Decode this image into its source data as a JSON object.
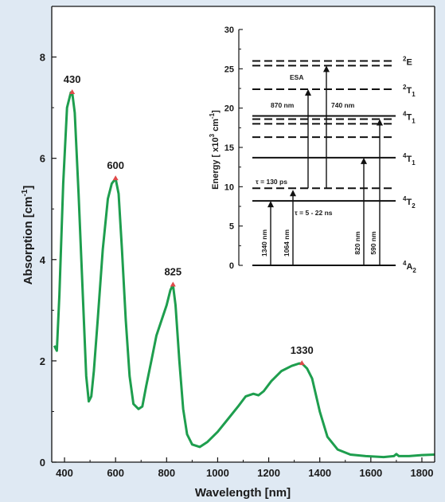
{
  "chart_data": [
    {
      "type": "line",
      "title": "",
      "xlabel": "Wavelength [nm]",
      "ylabel": "Absorption [cm",
      "ylabel_sup": "-1",
      "ylabel_close": "]",
      "xlim": [
        350,
        1850
      ],
      "ylim": [
        0,
        9
      ],
      "x_ticks": [
        400,
        600,
        800,
        1000,
        1200,
        1400,
        1600,
        1800
      ],
      "y_ticks": [
        0,
        2,
        4,
        6,
        8
      ],
      "grid": false,
      "line_color": "#1e9e4e",
      "marker_color": "#e04a4a",
      "series": [
        {
          "x": [
            360,
            370,
            380,
            395,
            410,
            425,
            430,
            440,
            455,
            470,
            485,
            495,
            505,
            515,
            530,
            550,
            570,
            585,
            600,
            612,
            625,
            640,
            655,
            670,
            690,
            705,
            720,
            740,
            760,
            780,
            800,
            815,
            825,
            835,
            850,
            865,
            880,
            900,
            930,
            960,
            1000,
            1040,
            1080,
            1110,
            1140,
            1160,
            1180,
            1210,
            1250,
            1290,
            1320,
            1330,
            1350,
            1370,
            1400,
            1430,
            1470,
            1520,
            1580,
            1650,
            1690,
            1700,
            1710,
            1750,
            1800,
            1850
          ],
          "y": [
            2.3,
            2.2,
            3.3,
            5.5,
            7.0,
            7.3,
            7.3,
            6.9,
            5.3,
            3.5,
            1.7,
            1.2,
            1.3,
            1.8,
            2.8,
            4.2,
            5.2,
            5.5,
            5.6,
            5.3,
            4.2,
            2.8,
            1.7,
            1.15,
            1.05,
            1.1,
            1.5,
            2.0,
            2.5,
            2.8,
            3.1,
            3.4,
            3.5,
            3.1,
            2.0,
            1.05,
            0.55,
            0.35,
            0.3,
            0.4,
            0.6,
            0.85,
            1.1,
            1.3,
            1.35,
            1.32,
            1.4,
            1.6,
            1.8,
            1.9,
            1.95,
            1.95,
            1.85,
            1.65,
            1.0,
            0.5,
            0.25,
            0.15,
            0.12,
            0.1,
            0.12,
            0.16,
            0.12,
            0.12,
            0.14,
            0.15
          ]
        }
      ],
      "peaks": [
        {
          "x": 430,
          "y": 7.3,
          "label": "430"
        },
        {
          "x": 600,
          "y": 5.6,
          "label": "600"
        },
        {
          "x": 825,
          "y": 3.5,
          "label": "825"
        },
        {
          "x": 1330,
          "y": 1.95,
          "label": "1330"
        }
      ]
    },
    {
      "type": "diagram",
      "ylabel": "Energy [ x10",
      "ylabel_sup1": "3",
      "ylabel_mid": " cm",
      "ylabel_sup2": "-1",
      "ylabel_close": "]",
      "ylim": [
        0,
        30
      ],
      "y_ticks": [
        0,
        5,
        10,
        15,
        20,
        25,
        30
      ],
      "levels": [
        {
          "e": 0,
          "style": "solid",
          "label": "A",
          "sup": "4",
          "sub": "2"
        },
        {
          "e": 8.2,
          "style": "solid",
          "label": "T",
          "sup": "4",
          "sub": "2"
        },
        {
          "e": 9.8,
          "style": "dashed"
        },
        {
          "e": 13.7,
          "style": "solid",
          "label": "T",
          "sup": "4",
          "sub": "1"
        },
        {
          "e": 16.3,
          "style": "dashed"
        },
        {
          "e": 18.0,
          "style": "dashed"
        },
        {
          "e": 18.6,
          "style": "dashed"
        },
        {
          "e": 19.0,
          "style": "solid",
          "label": "T",
          "sup": "4",
          "sub": "1"
        },
        {
          "e": 22.4,
          "style": "dashed",
          "label": "T",
          "sup": "2",
          "sub": "1"
        },
        {
          "e": 25.4,
          "style": "dashed"
        },
        {
          "e": 26.0,
          "style": "dashed",
          "label": "E",
          "sup": "2",
          "sub": ""
        }
      ],
      "transitions": [
        {
          "from": 0,
          "to": 8.2,
          "label": "1340 nm"
        },
        {
          "from": 0,
          "to": 9.6,
          "label": "1064 nm"
        },
        {
          "from": 9.8,
          "to": 22.4,
          "label": "870 nm"
        },
        {
          "from": 9.8,
          "to": 25.4,
          "label": "740 nm"
        },
        {
          "from": 0,
          "to": 13.7,
          "label": "820 nm"
        },
        {
          "from": 0,
          "to": 18.6,
          "label": "590 nm"
        }
      ],
      "annotations": {
        "esa": "ESA",
        "tau_short": "τ = 130 ps",
        "tau_long": "τ = 5 - 22 ns"
      }
    }
  ]
}
